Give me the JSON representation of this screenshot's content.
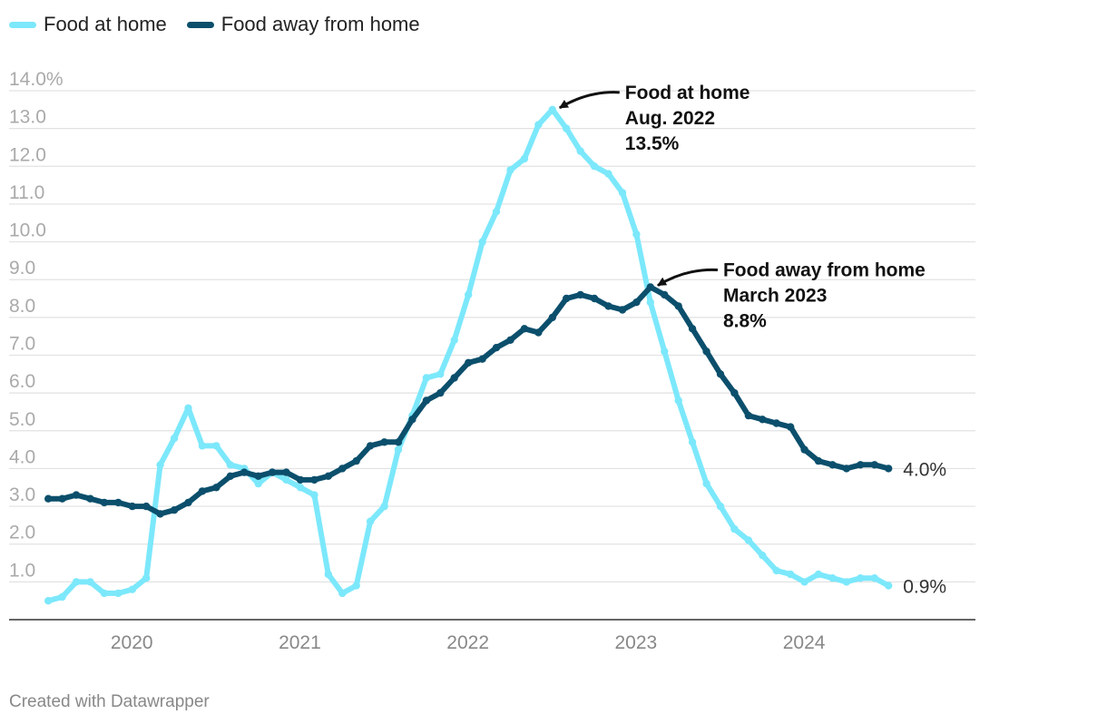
{
  "legend": {
    "items": [
      {
        "label": "Food at home",
        "color": "#7ce8fb"
      },
      {
        "label": "Food away from home",
        "color": "#0b4f6c"
      }
    ]
  },
  "footer": {
    "text": "Created with Datawrapper"
  },
  "chart_data": {
    "type": "line",
    "title": "",
    "xlabel": "",
    "ylabel": "",
    "ylim": [
      0,
      14
    ],
    "xlim": [
      2019.35,
      2025.1
    ],
    "y_ticks": [
      {
        "value": 14,
        "label": "14.0%"
      },
      {
        "value": 13,
        "label": "13.0"
      },
      {
        "value": 12,
        "label": "12.0"
      },
      {
        "value": 11,
        "label": "11.0"
      },
      {
        "value": 10,
        "label": "10.0"
      },
      {
        "value": 9,
        "label": "9.0"
      },
      {
        "value": 8,
        "label": "8.0"
      },
      {
        "value": 7,
        "label": "7.0"
      },
      {
        "value": 6,
        "label": "6.0"
      },
      {
        "value": 5,
        "label": "5.0"
      },
      {
        "value": 4,
        "label": "4.0"
      },
      {
        "value": 3,
        "label": "3.0"
      },
      {
        "value": 2,
        "label": "2.0"
      },
      {
        "value": 1,
        "label": "1.0"
      }
    ],
    "x_ticks": [
      {
        "value": 2020,
        "label": "2020"
      },
      {
        "value": 2021,
        "label": "2021"
      },
      {
        "value": 2022,
        "label": "2022"
      },
      {
        "value": 2023,
        "label": "2023"
      },
      {
        "value": 2024,
        "label": "2024"
      }
    ],
    "grid": true,
    "series": [
      {
        "name": "Food at home",
        "color": "#7ce8fb",
        "start": 2019.583,
        "step": 0.08333,
        "end_label": "0.9%",
        "values": [
          0.5,
          0.6,
          1.0,
          1.0,
          0.7,
          0.7,
          0.8,
          1.1,
          4.1,
          4.8,
          5.6,
          4.6,
          4.6,
          4.1,
          4.0,
          3.6,
          3.9,
          3.7,
          3.5,
          3.3,
          1.2,
          0.7,
          0.9,
          2.6,
          3.0,
          4.5,
          5.4,
          6.4,
          6.5,
          7.4,
          8.6,
          10.0,
          10.8,
          11.9,
          12.2,
          13.1,
          13.5,
          13.0,
          12.4,
          12.0,
          11.8,
          11.3,
          10.2,
          8.4,
          7.1,
          5.8,
          4.7,
          3.6,
          3.0,
          2.4,
          2.1,
          1.7,
          1.3,
          1.2,
          1.0,
          1.2,
          1.1,
          1.0,
          1.1,
          1.1,
          0.9
        ]
      },
      {
        "name": "Food away from home",
        "color": "#0b4f6c",
        "start": 2019.583,
        "step": 0.08333,
        "end_label": "4.0%",
        "values": [
          3.2,
          3.2,
          3.3,
          3.2,
          3.1,
          3.1,
          3.0,
          3.0,
          2.8,
          2.9,
          3.1,
          3.4,
          3.5,
          3.8,
          3.9,
          3.8,
          3.9,
          3.9,
          3.7,
          3.7,
          3.8,
          4.0,
          4.2,
          4.6,
          4.7,
          4.7,
          5.3,
          5.8,
          6.0,
          6.4,
          6.8,
          6.9,
          7.2,
          7.4,
          7.7,
          7.6,
          8.0,
          8.5,
          8.6,
          8.5,
          8.3,
          8.2,
          8.4,
          8.8,
          8.6,
          8.3,
          7.7,
          7.1,
          6.5,
          6.0,
          5.4,
          5.3,
          5.2,
          5.1,
          4.5,
          4.2,
          4.1,
          4.0,
          4.1,
          4.1,
          4.0
        ]
      }
    ],
    "annotations": [
      {
        "lines": [
          "Food at home",
          "Aug. 2022",
          "13.5%"
        ],
        "x": 2022.583,
        "y": 13.5
      },
      {
        "lines": [
          "Food away from home",
          "March 2023",
          "8.8%"
        ],
        "x": 2023.167,
        "y": 8.8
      }
    ]
  }
}
